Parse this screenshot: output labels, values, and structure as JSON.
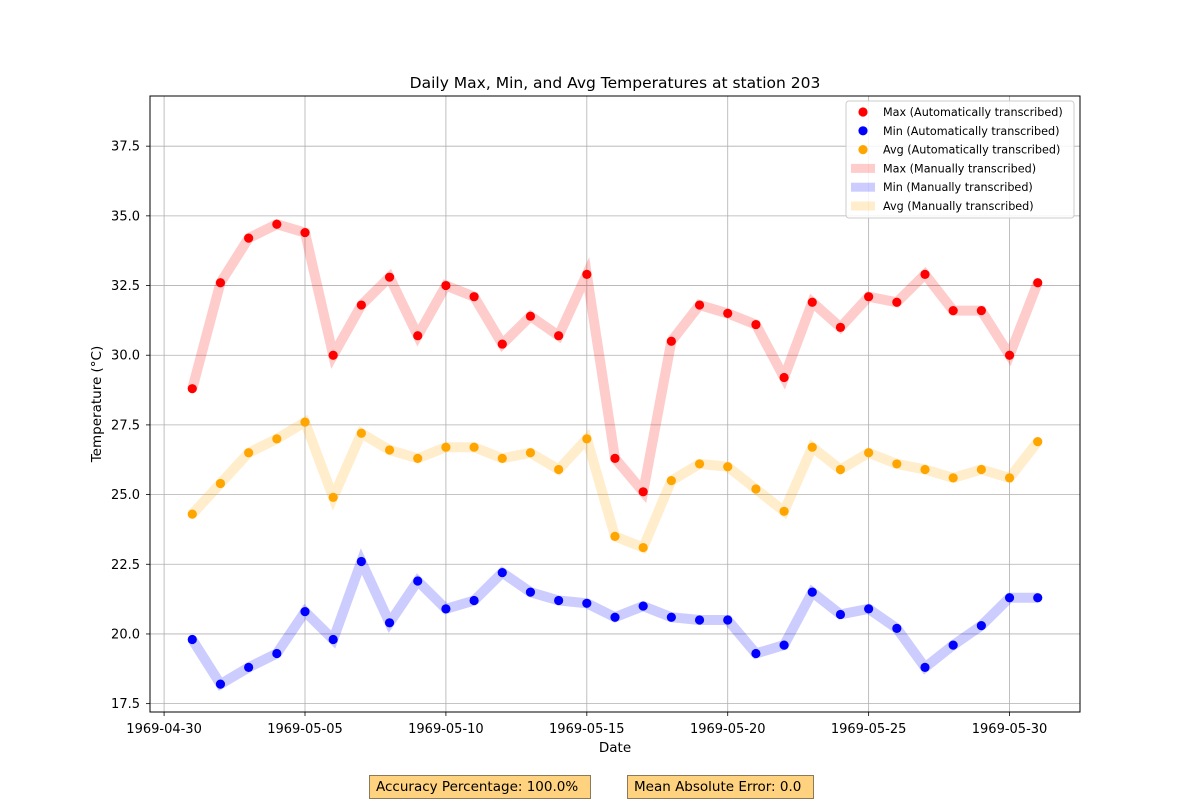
{
  "chart_data": {
    "type": "line",
    "title": "Daily Max, Min, and Avg Temperatures at station 203",
    "xlabel": "Date",
    "ylabel": "Temperature (°C)",
    "x": [
      "1969-05-01",
      "1969-05-02",
      "1969-05-03",
      "1969-05-04",
      "1969-05-05",
      "1969-05-06",
      "1969-05-07",
      "1969-05-08",
      "1969-05-09",
      "1969-05-10",
      "1969-05-11",
      "1969-05-12",
      "1969-05-13",
      "1969-05-14",
      "1969-05-15",
      "1969-05-16",
      "1969-05-17",
      "1969-05-18",
      "1969-05-19",
      "1969-05-20",
      "1969-05-21",
      "1969-05-22",
      "1969-05-23",
      "1969-05-24",
      "1969-05-25",
      "1969-05-26",
      "1969-05-27",
      "1969-05-28",
      "1969-05-29",
      "1969-05-30",
      "1969-05-31"
    ],
    "xlim": [
      "1969-04-30",
      "1969-06-02"
    ],
    "ylim": [
      17.2,
      39.3
    ],
    "x_ticks": [
      "1969-04-30",
      "1969-05-05",
      "1969-05-10",
      "1969-05-15",
      "1969-05-20",
      "1969-05-25",
      "1969-05-30"
    ],
    "y_ticks": [
      "17.5",
      "20.0",
      "22.5",
      "25.0",
      "27.5",
      "30.0",
      "32.5",
      "35.0",
      "37.5"
    ],
    "grid": true,
    "legend_position": "top-right",
    "series": [
      {
        "name": "Max (Automatically transcribed)",
        "style": "scatter",
        "color": "#ff0000",
        "values": [
          28.8,
          32.6,
          34.2,
          34.7,
          34.4,
          30.0,
          31.8,
          32.8,
          30.7,
          32.5,
          32.1,
          30.4,
          31.4,
          30.7,
          32.9,
          26.3,
          25.1,
          30.5,
          31.8,
          31.5,
          31.1,
          29.2,
          31.9,
          31.0,
          32.1,
          31.9,
          32.9,
          31.6,
          31.6,
          30.0,
          32.6
        ]
      },
      {
        "name": "Min (Automatically transcribed)",
        "style": "scatter",
        "color": "#0000ff",
        "values": [
          19.8,
          18.2,
          18.8,
          19.3,
          20.8,
          19.8,
          22.6,
          20.4,
          21.9,
          20.9,
          21.2,
          22.2,
          21.5,
          21.2,
          21.1,
          20.6,
          21.0,
          20.6,
          20.5,
          20.5,
          19.3,
          19.6,
          21.5,
          20.7,
          20.9,
          20.2,
          18.8,
          19.6,
          20.3,
          21.3,
          21.3
        ]
      },
      {
        "name": "Avg (Automatically transcribed)",
        "style": "scatter",
        "color": "#ffa500",
        "values": [
          24.3,
          25.4,
          26.5,
          27.0,
          27.6,
          24.9,
          27.2,
          26.6,
          26.3,
          26.7,
          26.7,
          26.3,
          26.5,
          25.9,
          27.0,
          23.5,
          23.1,
          25.5,
          26.1,
          26.0,
          25.2,
          24.4,
          26.7,
          25.9,
          26.5,
          26.1,
          25.9,
          25.6,
          25.9,
          25.6,
          26.9
        ]
      },
      {
        "name": "Max (Manually transcribed)",
        "style": "band",
        "color": "#ff0000",
        "values": [
          28.8,
          32.6,
          34.2,
          34.7,
          34.4,
          30.0,
          31.8,
          32.8,
          30.7,
          32.5,
          32.1,
          30.4,
          31.4,
          30.7,
          32.9,
          26.3,
          25.1,
          30.5,
          31.8,
          31.5,
          31.1,
          29.2,
          31.9,
          31.0,
          32.1,
          31.9,
          32.9,
          31.6,
          31.6,
          30.0,
          32.6
        ]
      },
      {
        "name": "Min (Manually transcribed)",
        "style": "band",
        "color": "#0000ff",
        "values": [
          19.8,
          18.2,
          18.8,
          19.3,
          20.8,
          19.8,
          22.6,
          20.4,
          21.9,
          20.9,
          21.2,
          22.2,
          21.5,
          21.2,
          21.1,
          20.6,
          21.0,
          20.6,
          20.5,
          20.5,
          19.3,
          19.6,
          21.5,
          20.7,
          20.9,
          20.2,
          18.8,
          19.6,
          20.3,
          21.3,
          21.3
        ]
      },
      {
        "name": "Avg (Manually transcribed)",
        "style": "band",
        "color": "#ffa500",
        "values": [
          24.3,
          25.4,
          26.5,
          27.0,
          27.6,
          24.9,
          27.2,
          26.6,
          26.3,
          26.7,
          26.7,
          26.3,
          26.5,
          25.9,
          27.0,
          23.5,
          23.1,
          25.5,
          26.1,
          26.0,
          25.2,
          24.4,
          26.7,
          25.9,
          26.5,
          26.1,
          25.9,
          25.6,
          25.9,
          25.6,
          26.9
        ]
      }
    ]
  },
  "metrics": {
    "accuracy": "Accuracy Percentage: 100.0%",
    "mae": "Mean Absolute Error: 0.0"
  }
}
